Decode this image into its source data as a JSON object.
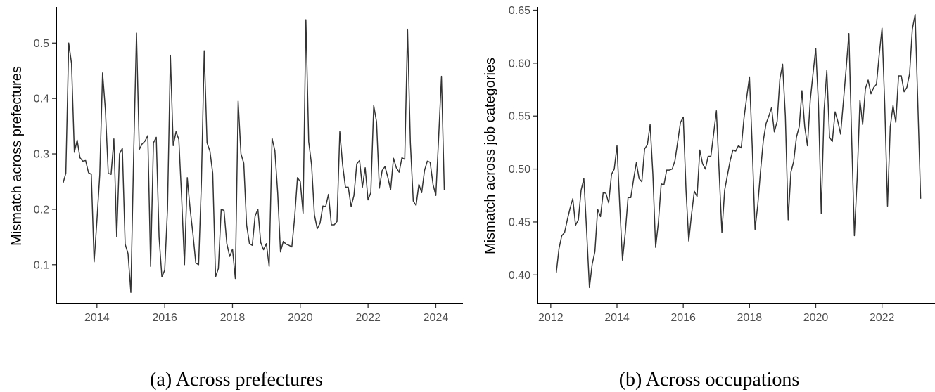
{
  "chart_data": [
    {
      "type": "line",
      "caption": "(a) Across prefectures",
      "ylabel": "Mismatch across prefectures",
      "xlabel": "",
      "xlim": [
        2012.8,
        2024.8
      ],
      "ylim": [
        0.03,
        0.565
      ],
      "x_ticks": [
        2014,
        2016,
        2018,
        2020,
        2022,
        2024
      ],
      "y_ticks": [
        0.1,
        0.2,
        0.3,
        0.4,
        0.5
      ],
      "y_tick_labels": [
        "0.1",
        "0.2",
        "0.3",
        "0.4",
        "0.5"
      ],
      "grid": false,
      "frequency": "monthly",
      "start": "2013-01",
      "values": [
        0.247,
        0.265,
        0.5,
        0.463,
        0.303,
        0.325,
        0.293,
        0.287,
        0.288,
        0.266,
        0.263,
        0.105,
        0.18,
        0.262,
        0.446,
        0.38,
        0.265,
        0.263,
        0.327,
        0.15,
        0.3,
        0.31,
        0.137,
        0.12,
        0.05,
        0.3,
        0.518,
        0.308,
        0.318,
        0.323,
        0.333,
        0.097,
        0.32,
        0.33,
        0.15,
        0.078,
        0.09,
        0.2,
        0.478,
        0.315,
        0.34,
        0.326,
        0.22,
        0.1,
        0.257,
        0.2,
        0.155,
        0.103,
        0.1,
        0.25,
        0.486,
        0.32,
        0.305,
        0.265,
        0.078,
        0.093,
        0.2,
        0.198,
        0.138,
        0.115,
        0.128,
        0.075,
        0.395,
        0.3,
        0.283,
        0.172,
        0.138,
        0.135,
        0.188,
        0.2,
        0.14,
        0.127,
        0.138,
        0.097,
        0.328,
        0.306,
        0.23,
        0.123,
        0.142,
        0.137,
        0.135,
        0.132,
        0.185,
        0.257,
        0.25,
        0.193,
        0.542,
        0.322,
        0.28,
        0.19,
        0.165,
        0.175,
        0.206,
        0.205,
        0.227,
        0.172,
        0.172,
        0.178,
        0.34,
        0.28,
        0.24,
        0.24,
        0.205,
        0.225,
        0.282,
        0.288,
        0.24,
        0.275,
        0.217,
        0.23,
        0.387,
        0.358,
        0.238,
        0.27,
        0.277,
        0.258,
        0.235,
        0.292,
        0.275,
        0.267,
        0.293,
        0.29,
        0.525,
        0.32,
        0.215,
        0.207,
        0.245,
        0.23,
        0.27,
        0.287,
        0.285,
        0.245,
        0.225,
        0.33,
        0.44,
        0.235
      ]
    },
    {
      "type": "line",
      "caption": "(b) Across occupations",
      "ylabel": "Mismatch across job categories",
      "xlabel": "",
      "xlim": [
        2011.6,
        2023.6
      ],
      "ylim": [
        0.373,
        0.653
      ],
      "x_ticks": [
        2012,
        2014,
        2016,
        2018,
        2020,
        2022
      ],
      "y_ticks": [
        0.4,
        0.45,
        0.5,
        0.55,
        0.6,
        0.65
      ],
      "y_tick_labels": [
        "0.40",
        "0.45",
        "0.50",
        "0.55",
        "0.60",
        "0.65"
      ],
      "grid": false,
      "frequency": "monthly",
      "start": "2012-03",
      "values": [
        0.402,
        0.425,
        0.437,
        0.44,
        0.452,
        0.463,
        0.472,
        0.447,
        0.452,
        0.48,
        0.491,
        0.442,
        0.388,
        0.41,
        0.422,
        0.462,
        0.455,
        0.478,
        0.477,
        0.468,
        0.495,
        0.5,
        0.522,
        0.465,
        0.414,
        0.44,
        0.473,
        0.473,
        0.49,
        0.506,
        0.491,
        0.488,
        0.519,
        0.523,
        0.542,
        0.495,
        0.426,
        0.45,
        0.486,
        0.485,
        0.499,
        0.499,
        0.5,
        0.508,
        0.526,
        0.544,
        0.549,
        0.48,
        0.432,
        0.457,
        0.479,
        0.474,
        0.518,
        0.505,
        0.5,
        0.512,
        0.512,
        0.533,
        0.555,
        0.497,
        0.44,
        0.48,
        0.494,
        0.508,
        0.518,
        0.517,
        0.522,
        0.52,
        0.548,
        0.568,
        0.587,
        0.52,
        0.443,
        0.466,
        0.498,
        0.527,
        0.543,
        0.55,
        0.558,
        0.535,
        0.545,
        0.585,
        0.599,
        0.55,
        0.452,
        0.497,
        0.507,
        0.53,
        0.54,
        0.574,
        0.54,
        0.522,
        0.565,
        0.59,
        0.614,
        0.56,
        0.458,
        0.555,
        0.593,
        0.53,
        0.526,
        0.554,
        0.545,
        0.533,
        0.563,
        0.595,
        0.628,
        0.53,
        0.437,
        0.492,
        0.565,
        0.542,
        0.576,
        0.584,
        0.571,
        0.577,
        0.58,
        0.608,
        0.633,
        0.56,
        0.465,
        0.54,
        0.56,
        0.544,
        0.588,
        0.588,
        0.573,
        0.577,
        0.59,
        0.632,
        0.646,
        0.56,
        0.472
      ]
    }
  ]
}
